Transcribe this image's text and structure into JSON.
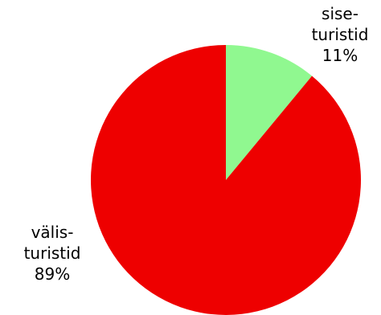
{
  "chart_data": {
    "type": "pie",
    "title": "",
    "slices": [
      {
        "label_lines": [
          "sise-",
          "turistid"
        ],
        "value": 11,
        "value_text": "11%",
        "color": "#90f890"
      },
      {
        "label_lines": [
          "välis-",
          "turistid"
        ],
        "value": 89,
        "value_text": "89%",
        "color": "#ee0000"
      }
    ],
    "start": "12 o'clock",
    "direction": "clockwise",
    "legend": "none",
    "labels": "outside"
  }
}
